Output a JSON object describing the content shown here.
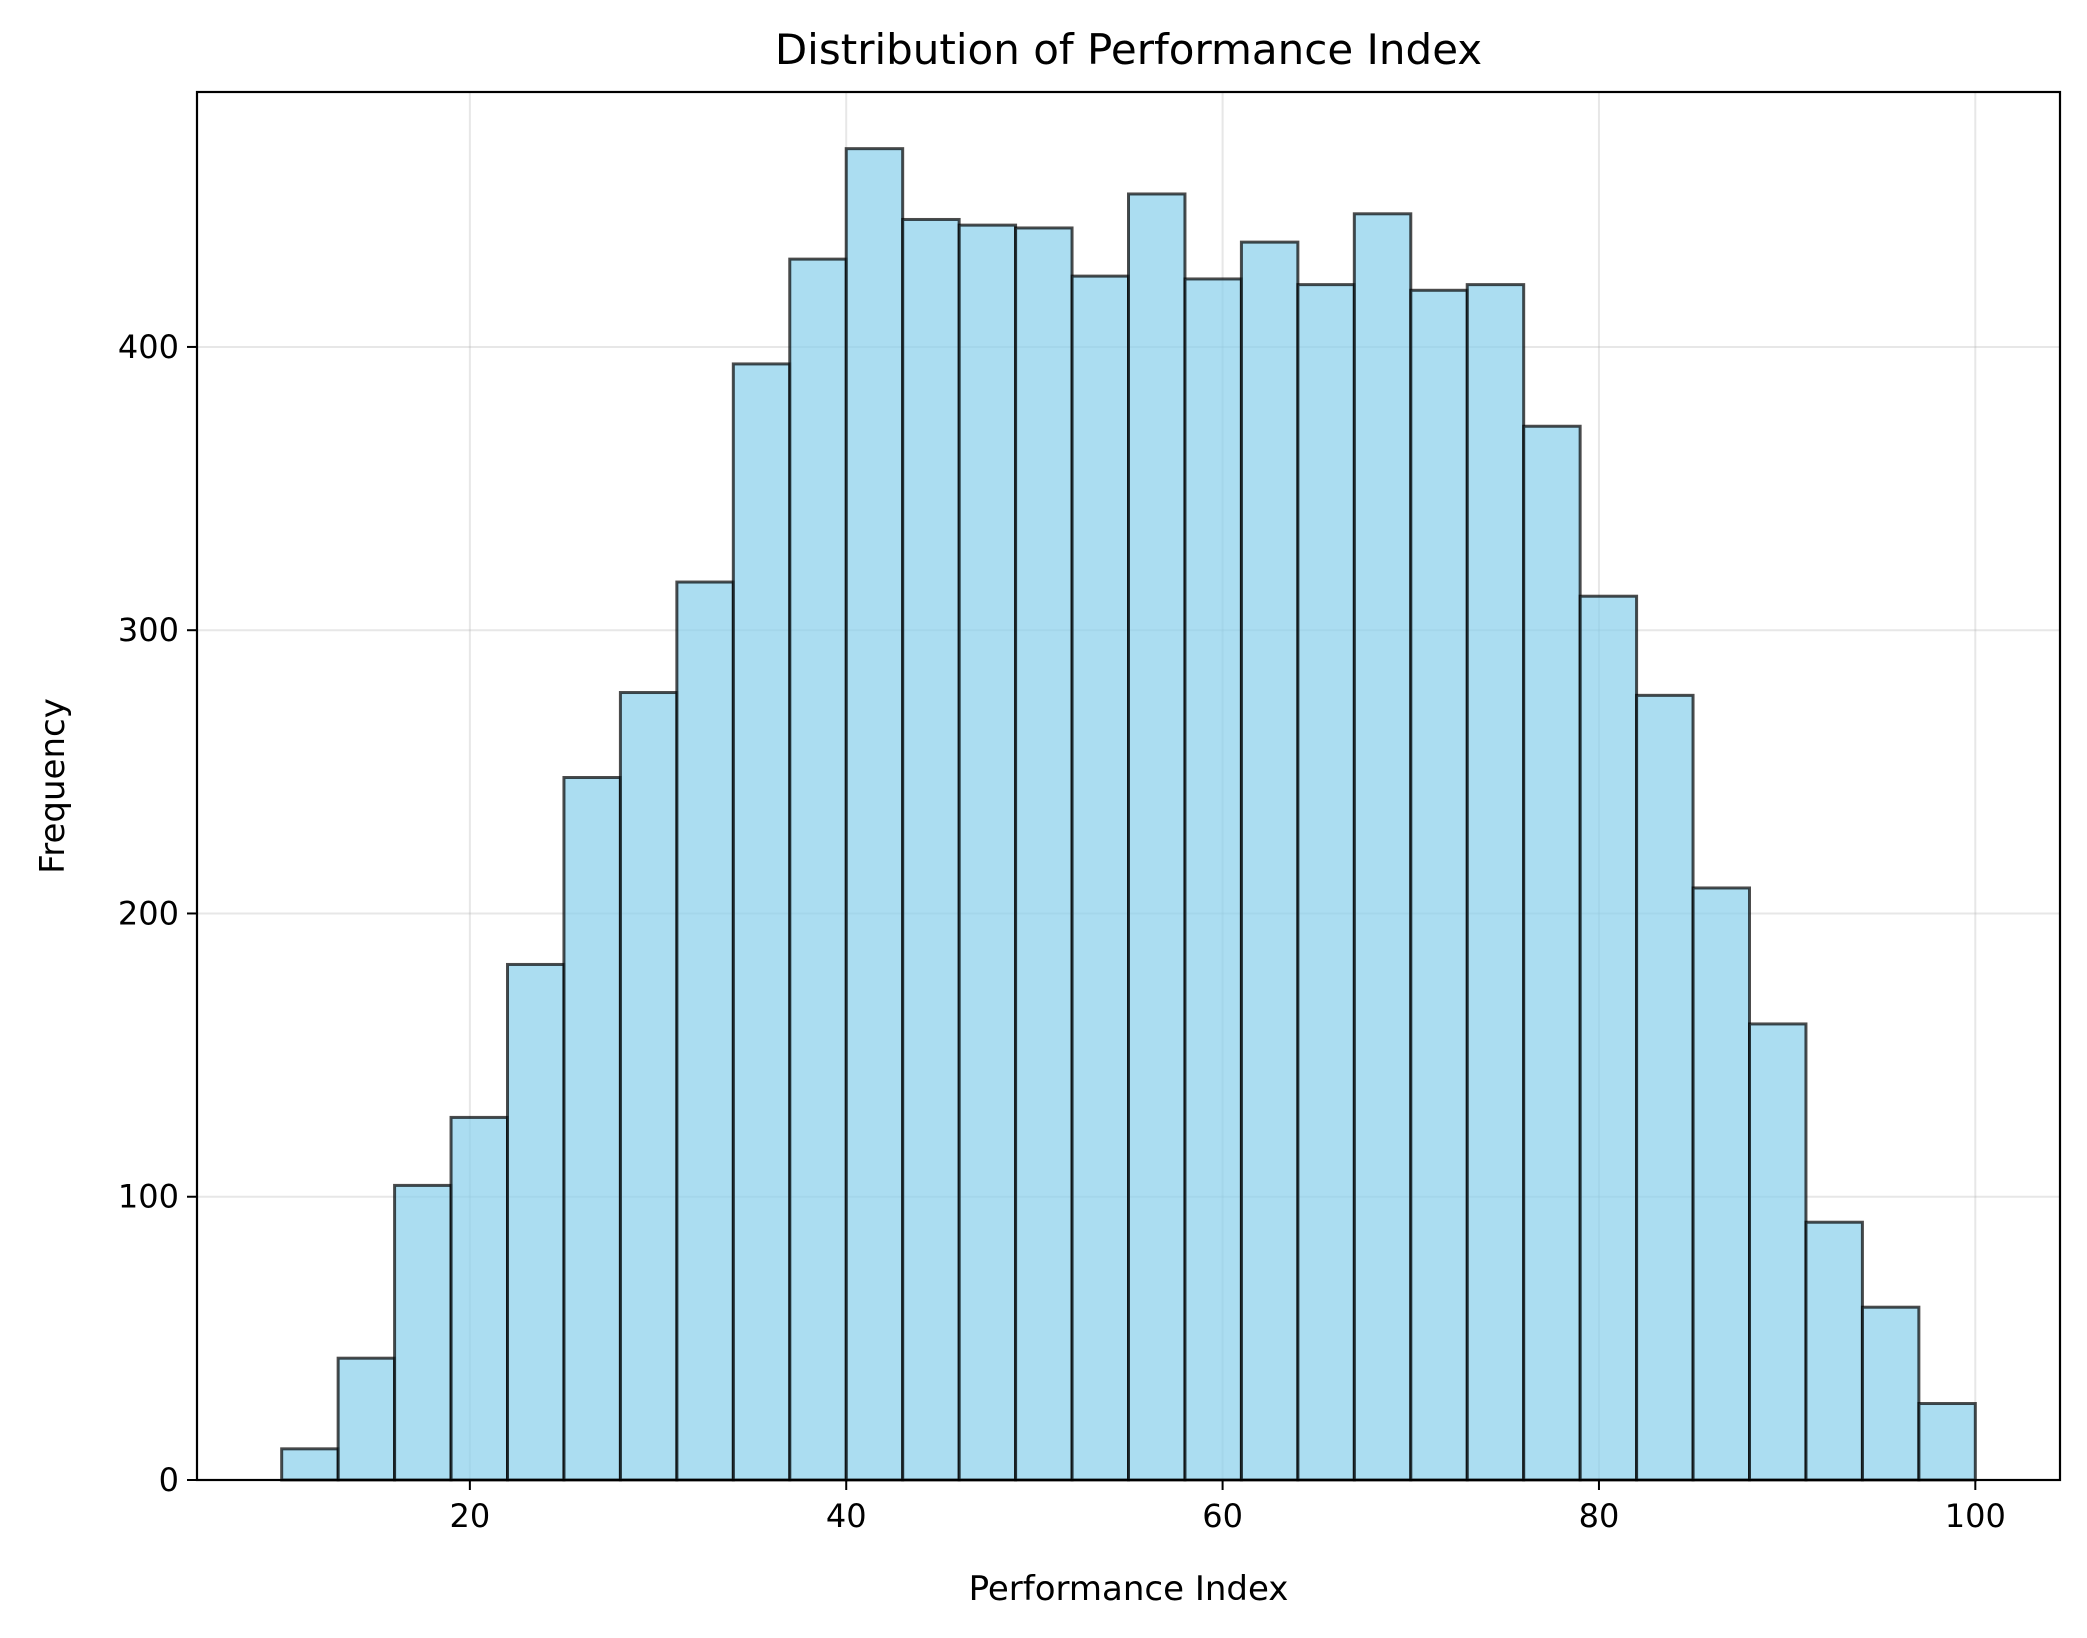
{
  "chart_data": {
    "type": "bar",
    "histogram": true,
    "title": "Distribution of Performance Index",
    "xlabel": "Performance Index",
    "ylabel": "Frequency",
    "xlim": [
      5.5,
      104.5
    ],
    "ylim": [
      0,
      490
    ],
    "xticks": [
      20,
      40,
      60,
      80,
      100
    ],
    "yticks": [
      0,
      100,
      200,
      300,
      400
    ],
    "grid": true,
    "bar_color": "#87CEEB",
    "bar_opacity": 0.7,
    "edge_color": "#000000",
    "bins": [
      {
        "start": 10,
        "end": 13,
        "count": 11
      },
      {
        "start": 13,
        "end": 16,
        "count": 43
      },
      {
        "start": 16,
        "end": 19,
        "count": 104
      },
      {
        "start": 19,
        "end": 22,
        "count": 128
      },
      {
        "start": 22,
        "end": 25,
        "count": 182
      },
      {
        "start": 25,
        "end": 28,
        "count": 248
      },
      {
        "start": 28,
        "end": 31,
        "count": 278
      },
      {
        "start": 31,
        "end": 34,
        "count": 317
      },
      {
        "start": 34,
        "end": 37,
        "count": 394
      },
      {
        "start": 37,
        "end": 40,
        "count": 431
      },
      {
        "start": 40,
        "end": 43,
        "count": 470
      },
      {
        "start": 43,
        "end": 46,
        "count": 445
      },
      {
        "start": 46,
        "end": 49,
        "count": 443
      },
      {
        "start": 49,
        "end": 52,
        "count": 442
      },
      {
        "start": 52,
        "end": 55,
        "count": 425
      },
      {
        "start": 55,
        "end": 58,
        "count": 454
      },
      {
        "start": 58,
        "end": 61,
        "count": 424
      },
      {
        "start": 61,
        "end": 64,
        "count": 437
      },
      {
        "start": 64,
        "end": 67,
        "count": 422
      },
      {
        "start": 67,
        "end": 70,
        "count": 447
      },
      {
        "start": 70,
        "end": 73,
        "count": 420
      },
      {
        "start": 73,
        "end": 76,
        "count": 422
      },
      {
        "start": 76,
        "end": 79,
        "count": 372
      },
      {
        "start": 79,
        "end": 82,
        "count": 312
      },
      {
        "start": 82,
        "end": 85,
        "count": 277
      },
      {
        "start": 85,
        "end": 88,
        "count": 209
      },
      {
        "start": 88,
        "end": 91,
        "count": 161
      },
      {
        "start": 91,
        "end": 94,
        "count": 91
      },
      {
        "start": 94,
        "end": 97,
        "count": 61
      },
      {
        "start": 97,
        "end": 100,
        "count": 27
      }
    ]
  }
}
